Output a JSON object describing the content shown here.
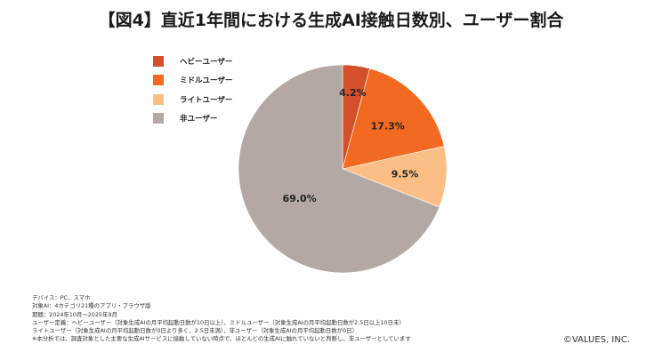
{
  "chart_data": {
    "type": "pie",
    "title": "【図4】直近1年間における生成AI接触日数別、ユーザー割合",
    "legend_position": "top-left",
    "slices": [
      {
        "label": "ヘビーユーザー",
        "value": 4.2,
        "value_label": "4.2%",
        "color": "#d4502a"
      },
      {
        "label": "ミドルユーザー",
        "value": 17.3,
        "value_label": "17.3%",
        "color": "#f26a22"
      },
      {
        "label": "ライトユーザー",
        "value": 9.5,
        "value_label": "9.5%",
        "color": "#fbbf85"
      },
      {
        "label": "非ユーザー",
        "value": 69.0,
        "value_label": "69.0%",
        "color": "#b3a8a4"
      }
    ]
  },
  "notes": [
    "デバイス：PC、スマホ",
    "対象AI：4カテゴリ21種のアプリ・ブラウザ版",
    "期間：2024年10月〜2025年9月",
    "ユーザー定義：ヘビーユーザー（対象生成AIの月平均起動日数が10日以上）、ミドルユーザー（対象生成AIの月平均起動日数が2.5日以上10日未）",
    "ライトユーザー（対象生成AIの月平均起動日数が0日より多く、2.5日未満）、非ユーザー（対象生成AIの月平均起動日数が0日）",
    "※本分析では、調査対象とした主要な生成AIサービスに接触していない時点で、ほとんどの生成AIに触れていないと判断し、非ユーザーとしています"
  ],
  "copyright": "©VALUES, INC."
}
